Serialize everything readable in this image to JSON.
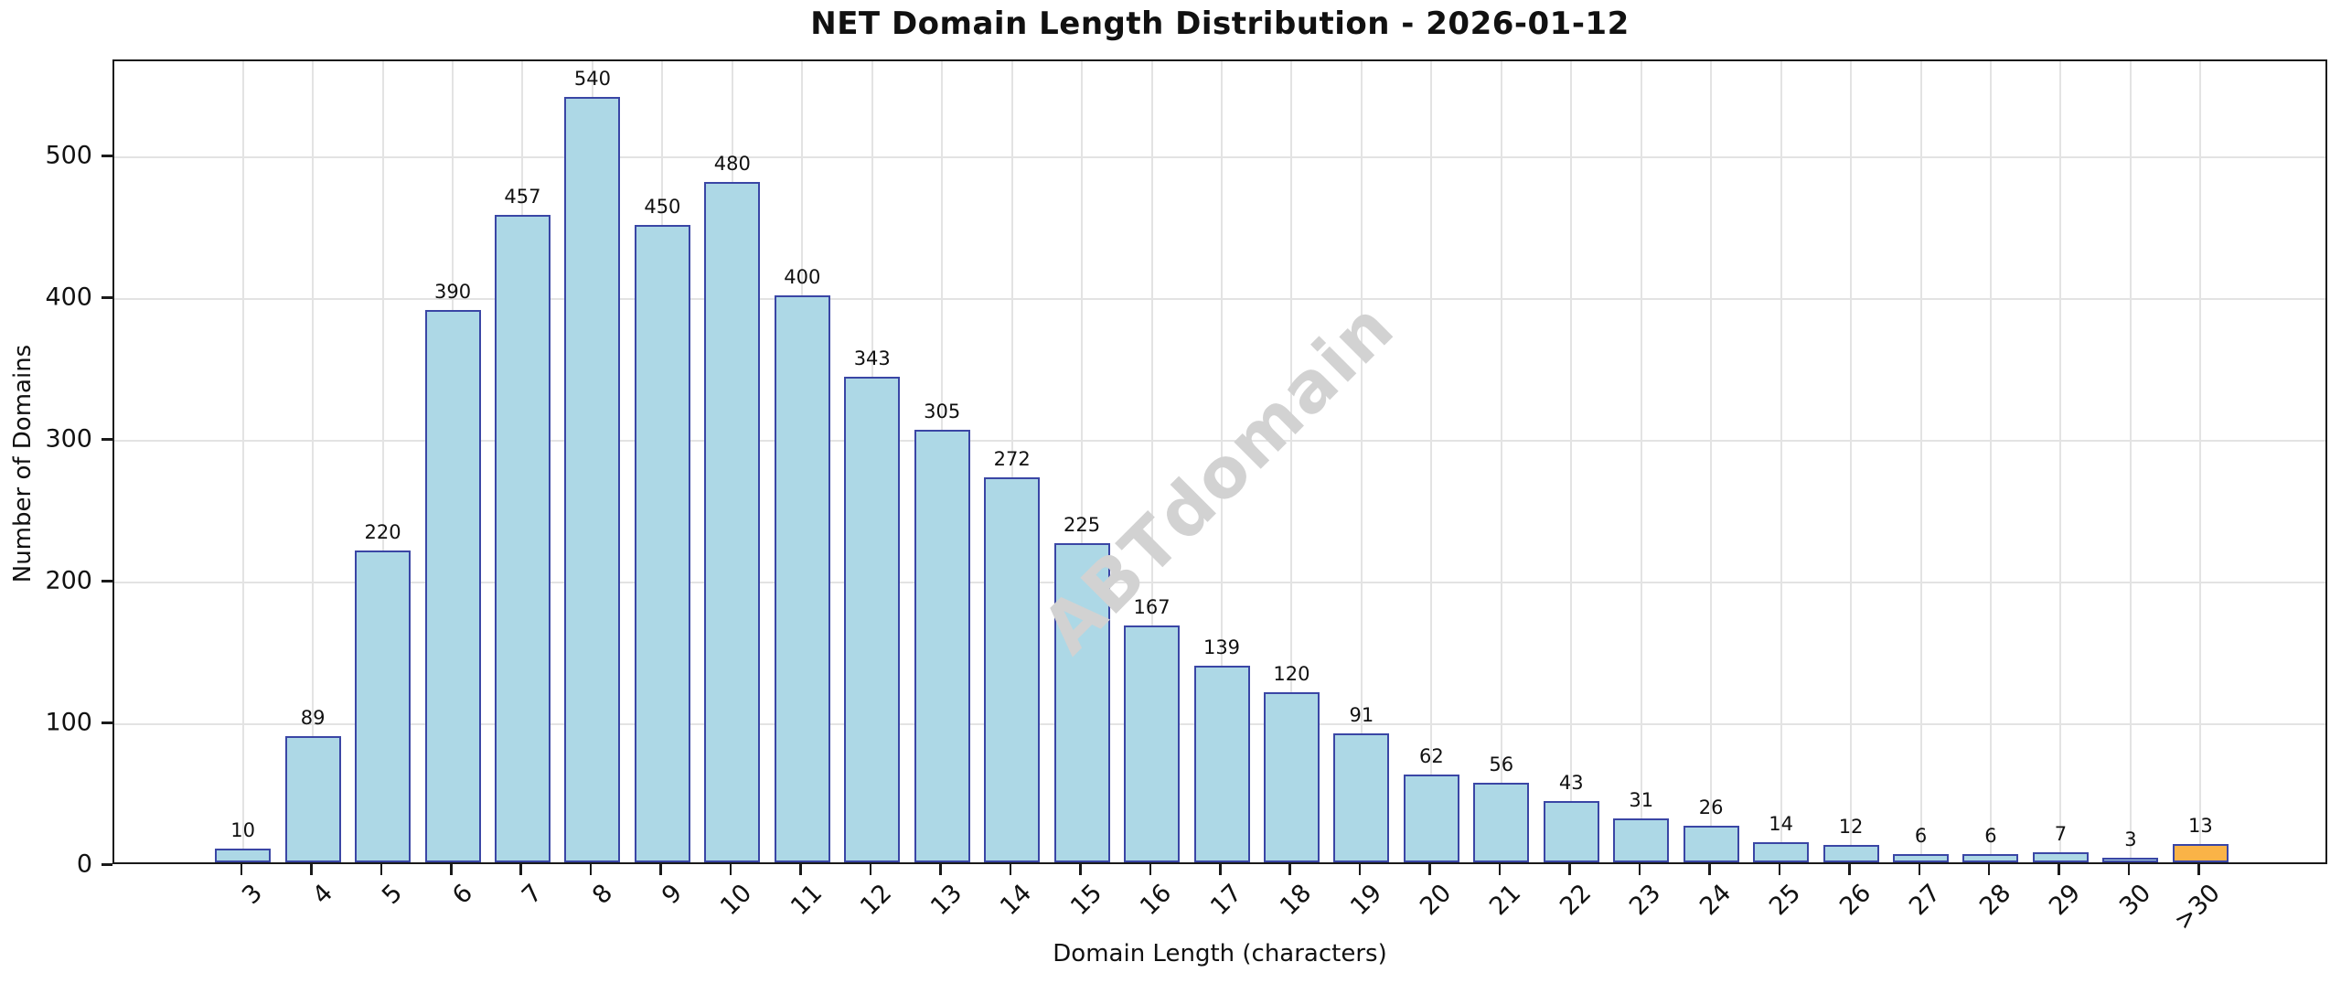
{
  "chart_data": {
    "type": "bar",
    "title": "NET Domain Length Distribution - 2026-01-12",
    "xlabel": "Domain Length (characters)",
    "ylabel": "Number of Domains",
    "categories": [
      "3",
      "4",
      "5",
      "6",
      "7",
      "8",
      "9",
      "10",
      "11",
      "12",
      "13",
      "14",
      "15",
      "16",
      "17",
      "18",
      "19",
      "20",
      "21",
      "22",
      "23",
      "24",
      "25",
      "26",
      "27",
      "28",
      "29",
      "30",
      ">30"
    ],
    "values": [
      10,
      89,
      220,
      390,
      457,
      540,
      450,
      480,
      400,
      343,
      305,
      272,
      225,
      167,
      139,
      120,
      91,
      62,
      56,
      43,
      31,
      26,
      14,
      12,
      6,
      6,
      7,
      3,
      13
    ],
    "bar_value_labels_shown": true,
    "yticks": [
      0,
      100,
      200,
      300,
      400,
      500
    ],
    "ylim": [
      0,
      568
    ],
    "grid": true,
    "legend": "none",
    "watermark": "ABTdomain",
    "colors": {
      "bar_fill": "#ADD8E6",
      "bar_edge": "#3A46A5",
      "highlight_fill": "#FAB347",
      "highlight_index": 28,
      "grid": "#E3E3E3",
      "spine": "#1A1A1A",
      "text": "#111111",
      "watermark": "#D2D2D2",
      "background": "#FFFFFF"
    }
  }
}
